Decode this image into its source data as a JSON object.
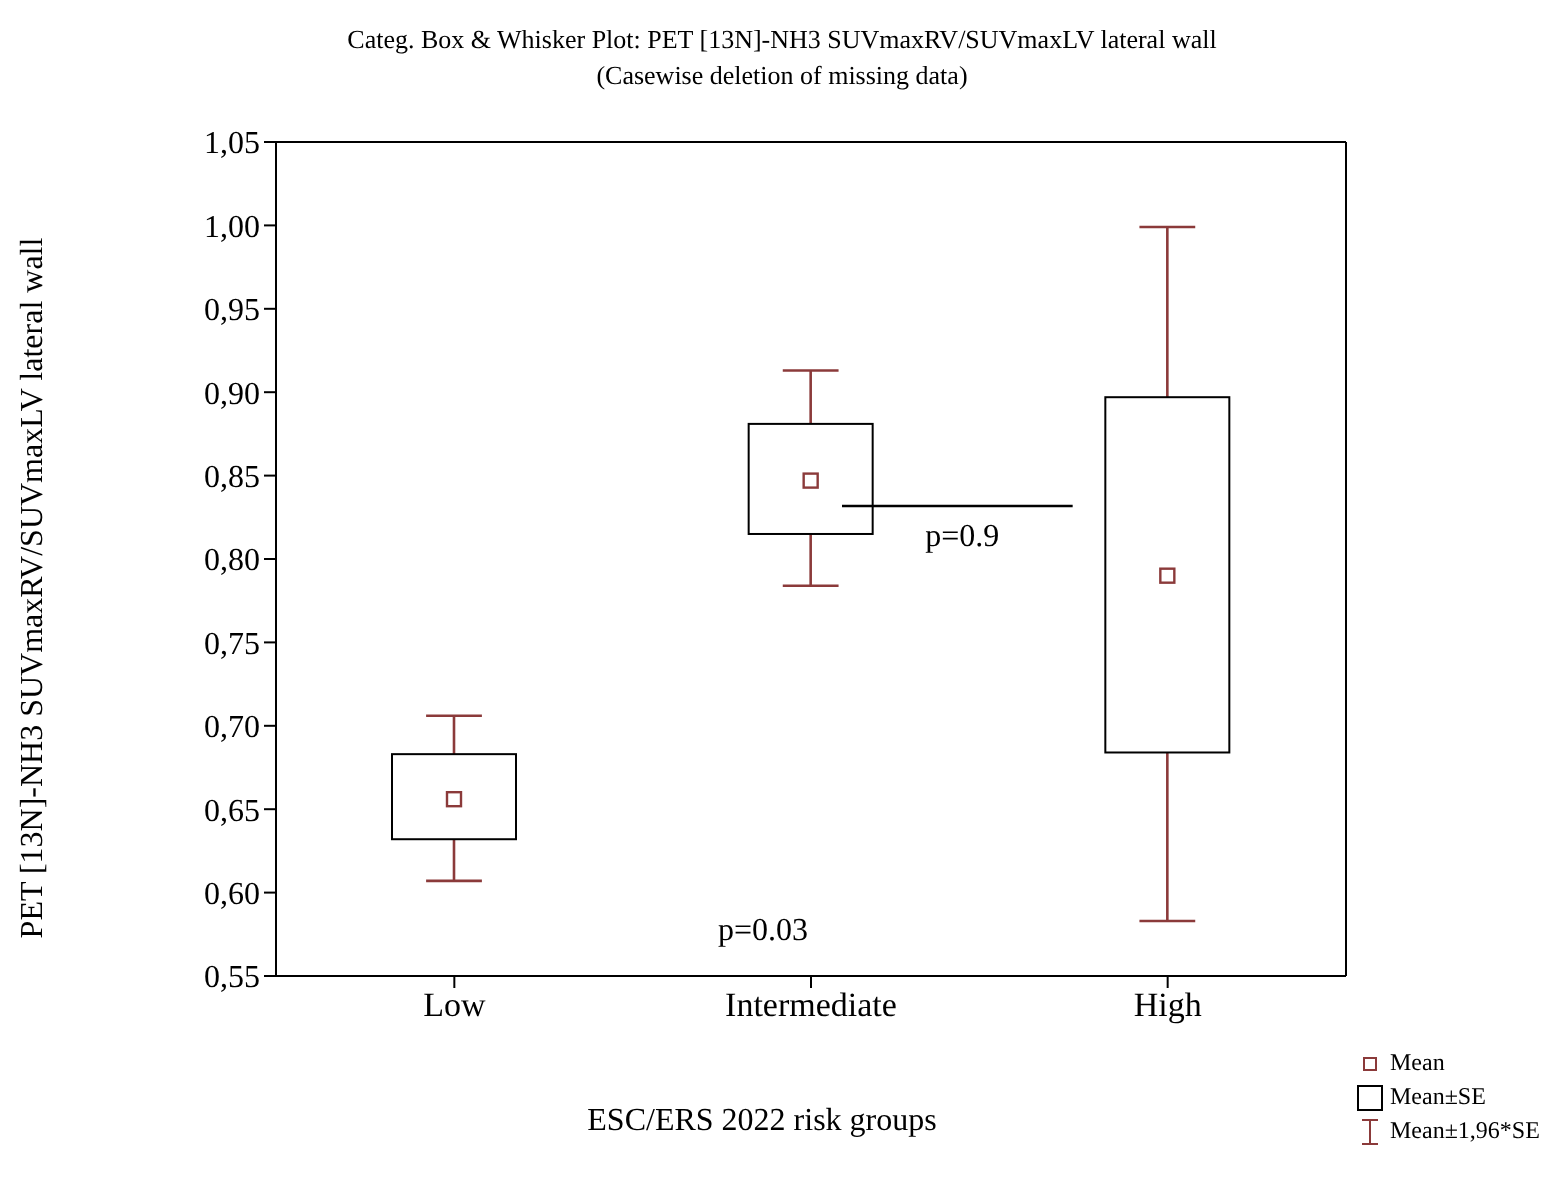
{
  "chart_data": {
    "type": "box",
    "title": "Categ. Box & Whisker Plot: PET [13N]-NH3 SUVmaxRV/SUVmaxLV lateral wall",
    "subtitle": "(Casewise deletion of missing data)",
    "xlabel": "ESC/ERS 2022 risk groups",
    "ylabel": "PET [13N]-NH3 SUVmaxRV/SUVmaxLV lateral wall",
    "categories": [
      "Low",
      "Intermediate",
      "High"
    ],
    "boxes": [
      {
        "low": 0.607,
        "q1": 0.632,
        "median": 0.656,
        "q3": 0.683,
        "high": 0.706
      },
      {
        "low": 0.784,
        "q1": 0.815,
        "median": 0.847,
        "q3": 0.881,
        "high": 0.913
      },
      {
        "low": 0.583,
        "q1": 0.684,
        "median": 0.79,
        "q3": 0.897,
        "high": 0.999
      }
    ],
    "color": "#000000",
    "ylim": [
      0.55,
      1.05
    ],
    "yticks": [
      {
        "value": 0.55,
        "label": "0,55"
      },
      {
        "value": 0.6,
        "label": "0,60"
      },
      {
        "value": 0.65,
        "label": "0,65"
      },
      {
        "value": 0.7,
        "label": "0,70"
      },
      {
        "value": 0.75,
        "label": "0,75"
      },
      {
        "value": 0.8,
        "label": "0,80"
      },
      {
        "value": 0.85,
        "label": "0,85"
      },
      {
        "value": 0.9,
        "label": "0,90"
      },
      {
        "value": 0.95,
        "label": "0,95"
      },
      {
        "value": 1.0,
        "label": "1,00"
      },
      {
        "value": 1.05,
        "label": "1,05"
      }
    ],
    "annotations": [
      "p=0.03",
      "p=0.9",
      "Mean",
      "Mean±SE",
      "Mean±1,96*SE"
    ]
  }
}
